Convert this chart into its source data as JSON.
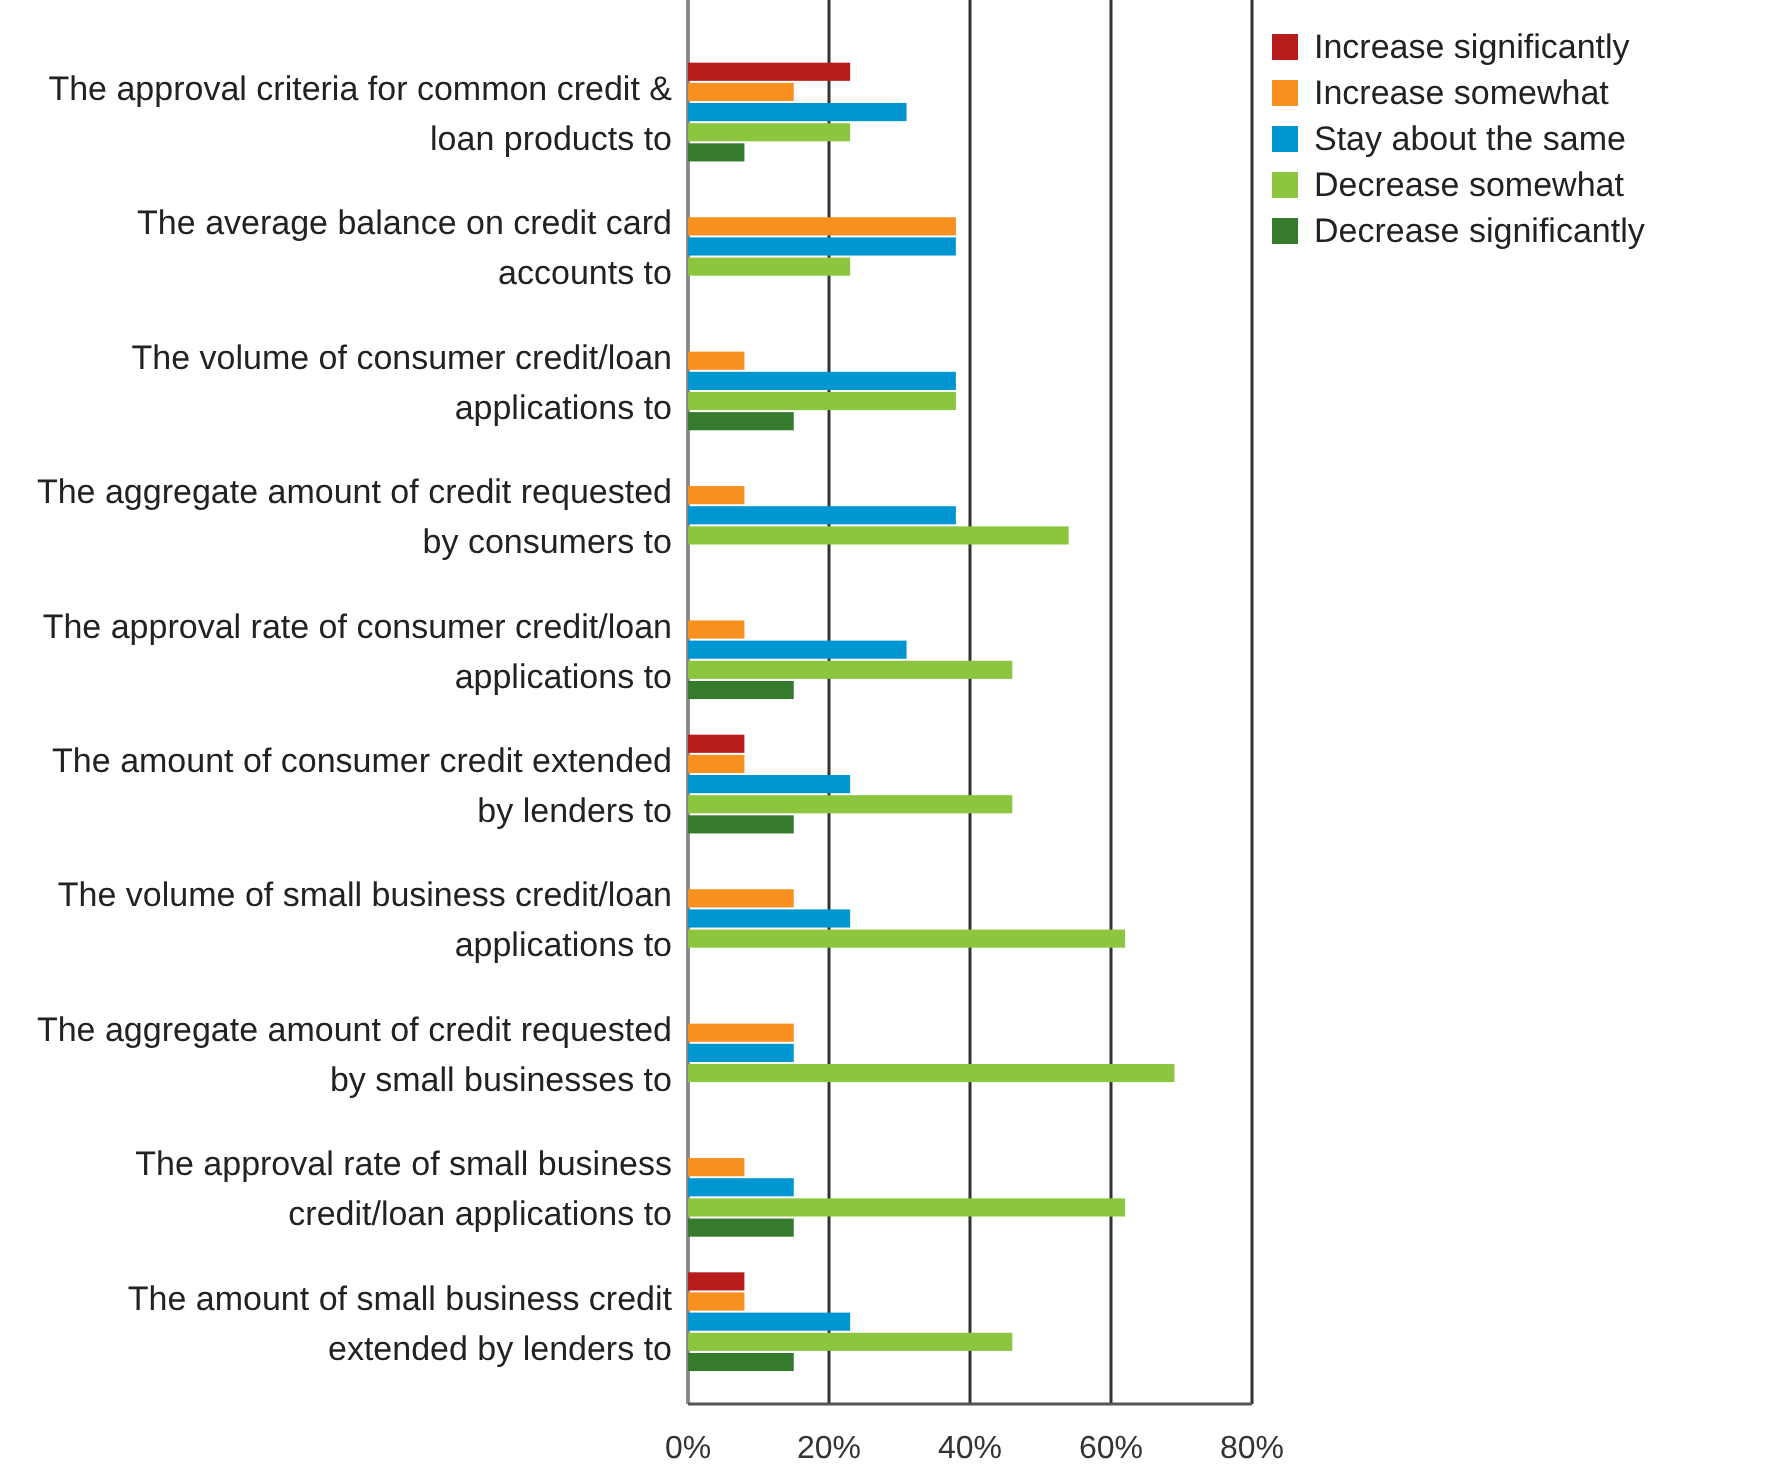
{
  "chart_data": {
    "type": "bar",
    "orientation": "horizontal",
    "categories": [
      "The approval criteria for common credit & loan products to",
      "The average balance on credit card accounts to",
      "The volume of consumer credit/loan applications to",
      "The aggregate amount of credit requested by consumers to",
      "The approval rate of consumer credit/loan applications to",
      "The amount of consumer credit extended by lenders to",
      "The volume of small business credit/loan applications to",
      "The aggregate amount of credit requested by small businesses to",
      "The approval rate of small business credit/loan applications to",
      "The amount of small business credit extended by lenders to"
    ],
    "series": [
      {
        "name": "Increase significantly",
        "color": "#b71c1c",
        "values": [
          23,
          null,
          null,
          null,
          null,
          8,
          null,
          null,
          null,
          8
        ]
      },
      {
        "name": "Increase somewhat",
        "color": "#f7901e",
        "values": [
          15,
          38,
          8,
          8,
          8,
          8,
          15,
          15,
          8,
          8
        ]
      },
      {
        "name": "Stay about the same",
        "color": "#0096d1",
        "values": [
          31,
          38,
          38,
          38,
          31,
          23,
          23,
          15,
          15,
          23
        ]
      },
      {
        "name": "Decrease somewhat",
        "color": "#8cc63f",
        "values": [
          23,
          23,
          38,
          54,
          46,
          46,
          62,
          69,
          62,
          46
        ]
      },
      {
        "name": "Decrease significantly",
        "color": "#357a2d",
        "values": [
          8,
          null,
          15,
          null,
          15,
          15,
          null,
          null,
          15,
          15
        ]
      }
    ],
    "xlim": [
      0,
      80
    ],
    "xticks": [
      {
        "value": 0,
        "label": "0%"
      },
      {
        "value": 20,
        "label": "20%"
      },
      {
        "value": 40,
        "label": "40%"
      },
      {
        "value": 60,
        "label": "60%"
      },
      {
        "value": 80,
        "label": "80%"
      }
    ],
    "grid": "x",
    "legend": "top right"
  }
}
